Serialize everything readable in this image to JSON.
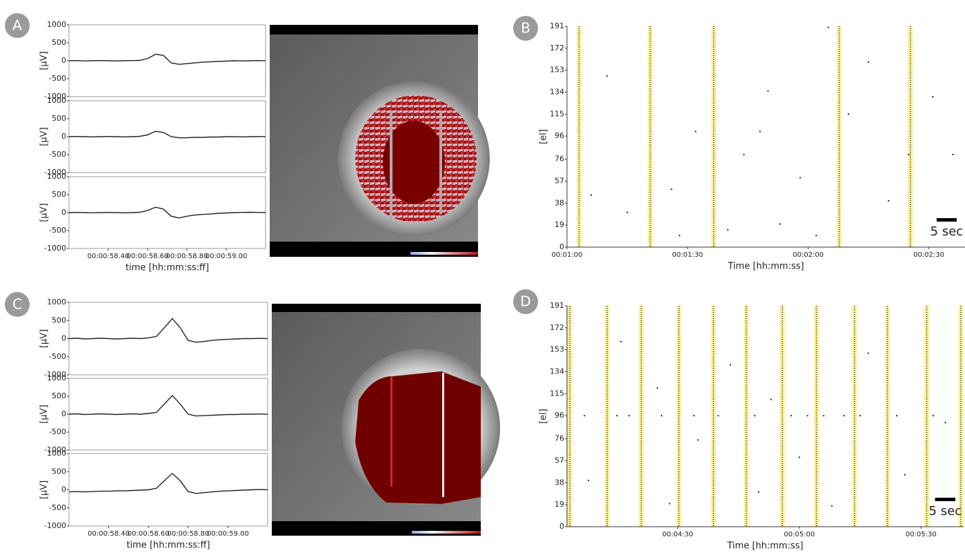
{
  "panel_labels": [
    "A",
    "B",
    "C",
    "D"
  ],
  "chart_data": [
    {
      "type": "line",
      "ylabel": "[µV]",
      "color": "#222222",
      "ylim": [
        -1000,
        1000
      ],
      "yticks": [
        -1000,
        -500,
        0,
        500,
        1000
      ],
      "xlim": [
        58.2,
        59.2
      ],
      "x": [
        58.2,
        58.24,
        58.28,
        58.32,
        58.36,
        58.4,
        58.44,
        58.48,
        58.52,
        58.56,
        58.6,
        58.64,
        58.68,
        58.72,
        58.76,
        58.8,
        58.84,
        58.88,
        58.92,
        58.96,
        59.0,
        59.04,
        59.08,
        59.12,
        59.16,
        59.2
      ],
      "values": [
        0,
        5,
        -5,
        0,
        5,
        0,
        -5,
        0,
        5,
        10,
        60,
        180,
        150,
        -60,
        -100,
        -80,
        -60,
        -40,
        -30,
        -20,
        -10,
        0,
        -5,
        0,
        5,
        0
      ]
    },
    {
      "type": "line",
      "ylabel": "[µV]",
      "color": "#222222",
      "ylim": [
        -1000,
        1000
      ],
      "yticks": [
        -1000,
        -500,
        0,
        500,
        1000
      ],
      "xlim": [
        58.2,
        59.2
      ],
      "x": [
        58.2,
        58.24,
        58.28,
        58.32,
        58.36,
        58.4,
        58.44,
        58.48,
        58.52,
        58.56,
        58.6,
        58.64,
        58.68,
        58.72,
        58.76,
        58.8,
        58.84,
        58.88,
        58.92,
        58.96,
        59.0,
        59.04,
        59.08,
        59.12,
        59.16,
        59.2
      ],
      "values": [
        0,
        5,
        0,
        -5,
        0,
        5,
        0,
        -5,
        0,
        10,
        50,
        150,
        120,
        0,
        -30,
        -30,
        -20,
        -20,
        -10,
        -10,
        0,
        0,
        -5,
        0,
        5,
        0
      ]
    },
    {
      "type": "line",
      "ylabel": "[µV]",
      "xlabel": "time [hh:mm:ss:ff]",
      "color": "#222222",
      "ylim": [
        -1000,
        1000
      ],
      "yticks": [
        -1000,
        -500,
        0,
        500,
        1000
      ],
      "xlim": [
        58.2,
        59.2
      ],
      "xticks": [
        {
          "value": 58.4,
          "label": "00:00:58.40"
        },
        {
          "value": 58.6,
          "label": "00:00:58.60"
        },
        {
          "value": 58.8,
          "label": "00:00:58.80"
        },
        {
          "value": 59.0,
          "label": "00:00:59.00"
        }
      ],
      "x": [
        58.2,
        58.24,
        58.28,
        58.32,
        58.36,
        58.4,
        58.44,
        58.48,
        58.52,
        58.56,
        58.6,
        58.64,
        58.68,
        58.72,
        58.76,
        58.8,
        58.84,
        58.88,
        58.92,
        58.96,
        59.0,
        59.04,
        59.08,
        59.12,
        59.16,
        59.2
      ],
      "values": [
        0,
        5,
        0,
        -5,
        0,
        5,
        0,
        -5,
        0,
        10,
        60,
        150,
        100,
        -100,
        -150,
        -100,
        -70,
        -50,
        -40,
        -20,
        -10,
        0,
        5,
        10,
        5,
        0
      ]
    },
    {
      "type": "raster",
      "ylabel": "[el]",
      "xlabel": "Time [hh:mm:ss]",
      "burst_color": "#fbf29c",
      "spike_color": "#222222",
      "ylim": [
        0,
        191
      ],
      "yticks": [
        0,
        19,
        38,
        57,
        76,
        96,
        115,
        134,
        153,
        172,
        191
      ],
      "xlim": [
        60,
        159
      ],
      "xticks": [
        {
          "value": 60,
          "label": "00:01:00"
        },
        {
          "value": 90,
          "label": "00:01:30"
        },
        {
          "value": 120,
          "label": "00:02:00"
        },
        {
          "value": 150,
          "label": "00:02:30"
        }
      ],
      "bursts": [
        63,
        80.7,
        96.5,
        127.7,
        145.4
      ],
      "spikes": {
        "x": [
          70,
          75,
          88,
          92,
          104,
          110,
          113,
          118,
          122,
          135,
          140,
          151,
          156,
          66,
          100,
          130,
          86,
          108,
          125,
          145
        ],
        "y": [
          148,
          30,
          10,
          100,
          80,
          135,
          20,
          60,
          10,
          160,
          40,
          130,
          80,
          45,
          15,
          115,
          50,
          100,
          190,
          80
        ]
      },
      "scale_bar": {
        "seconds": 5,
        "label": "5 sec"
      }
    },
    {
      "type": "line",
      "ylabel": "[µV]",
      "color": "#222222",
      "ylim": [
        -1000,
        1000
      ],
      "yticks": [
        -1000,
        -500,
        0,
        500,
        1000
      ],
      "xlim": [
        58.2,
        59.2
      ],
      "x": [
        58.2,
        58.24,
        58.28,
        58.32,
        58.36,
        58.4,
        58.44,
        58.48,
        58.52,
        58.56,
        58.6,
        58.64,
        58.68,
        58.72,
        58.76,
        58.8,
        58.84,
        58.88,
        58.92,
        58.96,
        59.0,
        59.04,
        59.08,
        59.12,
        59.16,
        59.2
      ],
      "values": [
        0,
        10,
        -10,
        0,
        10,
        0,
        -10,
        0,
        10,
        0,
        20,
        60,
        300,
        550,
        300,
        -50,
        -100,
        -80,
        -50,
        -30,
        -20,
        -10,
        0,
        0,
        5,
        0
      ]
    },
    {
      "type": "line",
      "ylabel": "[µV]",
      "color": "#222222",
      "ylim": [
        -1000,
        1000
      ],
      "yticks": [
        -1000,
        -500,
        0,
        500,
        1000
      ],
      "xlim": [
        58.2,
        59.2
      ],
      "x": [
        58.2,
        58.24,
        58.28,
        58.32,
        58.36,
        58.4,
        58.44,
        58.48,
        58.52,
        58.56,
        58.6,
        58.64,
        58.68,
        58.72,
        58.76,
        58.8,
        58.84,
        58.88,
        58.92,
        58.96,
        59.0,
        59.04,
        59.08,
        59.12,
        59.16,
        59.2
      ],
      "values": [
        0,
        10,
        -10,
        0,
        10,
        0,
        -10,
        0,
        10,
        0,
        20,
        50,
        280,
        520,
        280,
        0,
        -50,
        -40,
        -30,
        -20,
        -10,
        -10,
        0,
        0,
        5,
        0
      ]
    },
    {
      "type": "line",
      "ylabel": "[µV]",
      "xlabel": "time [hh:mm:ss:ff]",
      "color": "#222222",
      "ylim": [
        -1000,
        1000
      ],
      "yticks": [
        -1000,
        -500,
        0,
        500,
        1000
      ],
      "xlim": [
        58.2,
        59.2
      ],
      "xticks": [
        {
          "value": 58.4,
          "label": "00:00:58.40"
        },
        {
          "value": 58.6,
          "label": "00:00:58.60"
        },
        {
          "value": 58.8,
          "label": "00:00:58.80"
        },
        {
          "value": 59.0,
          "label": "00:00:59.00"
        }
      ],
      "x": [
        58.2,
        58.24,
        58.28,
        58.32,
        58.36,
        58.4,
        58.44,
        58.48,
        58.52,
        58.56,
        58.6,
        58.64,
        58.68,
        58.72,
        58.76,
        58.8,
        58.84,
        58.88,
        58.92,
        58.96,
        59.0,
        59.04,
        59.08,
        59.12,
        59.16,
        59.2
      ],
      "values": [
        -60,
        -50,
        -60,
        -50,
        -40,
        -40,
        -30,
        -30,
        -20,
        -10,
        0,
        40,
        250,
        450,
        250,
        -50,
        -100,
        -80,
        -60,
        -40,
        -30,
        -20,
        -10,
        0,
        5,
        0
      ]
    },
    {
      "type": "raster",
      "ylabel": "[el]",
      "xlabel": "Time [hh:mm:ss]",
      "burst_color": "#fbf29c",
      "spike_color": "#222222",
      "ylim": [
        0,
        191
      ],
      "yticks": [
        0,
        19,
        38,
        57,
        76,
        96,
        115,
        134,
        153,
        172,
        191
      ],
      "xlim": [
        242.7,
        340.5
      ],
      "xticks": [
        {
          "value": 270,
          "label": "00:04:30"
        },
        {
          "value": 300,
          "label": "00:05:00"
        },
        {
          "value": 330,
          "label": "00:05:30"
        }
      ],
      "bursts": [
        243.4,
        252.6,
        261.0,
        270.3,
        278.8,
        286.9,
        295.8,
        304.2,
        313.6,
        321.7,
        331.4,
        339.8
      ],
      "spikes": {
        "x": [
          248,
          256,
          265,
          268,
          275,
          283,
          290,
          293,
          300,
          308,
          317,
          326,
          336,
          258,
          274,
          302,
          311,
          247,
          255,
          266,
          280,
          289,
          298,
          306,
          315,
          324,
          333
        ],
        "y": [
          40,
          160,
          120,
          20,
          75,
          140,
          30,
          110,
          60,
          18,
          150,
          45,
          90,
          96,
          96,
          96,
          96,
          96,
          96,
          96,
          96,
          96,
          96,
          96,
          96,
          96,
          96
        ]
      },
      "scale_bar": {
        "seconds": 5,
        "label": "5 sec"
      }
    }
  ]
}
